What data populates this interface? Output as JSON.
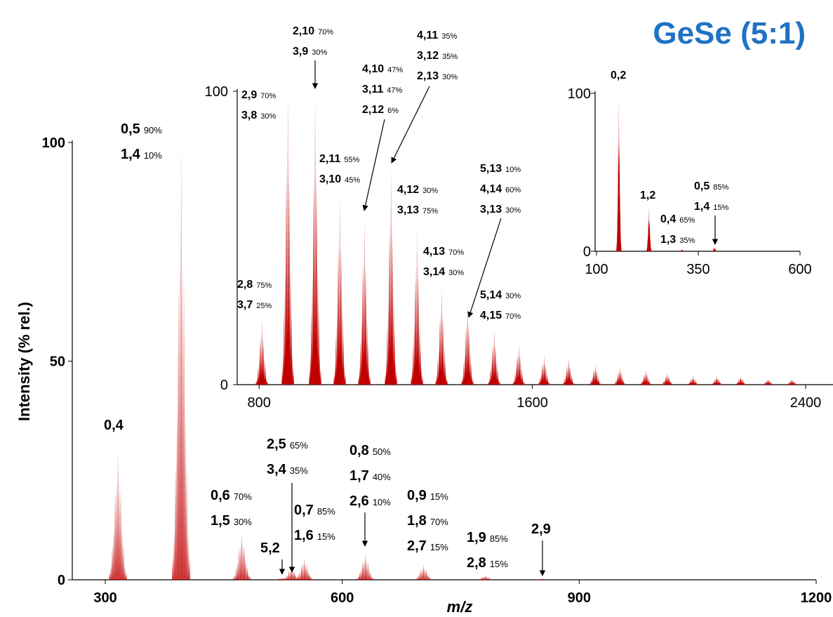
{
  "chart_data": [
    {
      "type": "spectrum",
      "title": "GeSe (5:1)",
      "x_label": "m/z",
      "y_label": "Intensity (% rel.)",
      "color": "#c00000",
      "xlim": [
        260,
        1200
      ],
      "xticks": [
        300,
        600,
        900,
        1200
      ],
      "ylim": [
        0,
        100
      ],
      "yticks": [
        0,
        50,
        100
      ],
      "peaks": [
        {
          "x": 316,
          "value": 30,
          "labels": [
            [
              "0,4"
            ]
          ],
          "arrow": false
        },
        {
          "x": 396,
          "value": 100,
          "labels": [
            [
              "0,5",
              "90%"
            ],
            [
              "1,4",
              "10%"
            ]
          ],
          "arrow": false
        },
        {
          "x": 473,
          "value": 11,
          "labels": [
            [
              "0,6",
              "70%"
            ],
            [
              "1,5",
              "30%"
            ]
          ],
          "arrow": false
        },
        {
          "x": 524,
          "value": 0.5,
          "labels": [
            [
              "5,2"
            ]
          ],
          "arrow": true
        },
        {
          "x": 536,
          "value": 3,
          "labels": [
            [
              "2,5",
              "65%"
            ],
            [
              "3,4",
              "35%"
            ]
          ],
          "arrow": true
        },
        {
          "x": 552,
          "value": 5,
          "labels": [
            [
              "0,7",
              "85%"
            ],
            [
              "1,6",
              "15%"
            ]
          ],
          "arrow": false
        },
        {
          "x": 629,
          "value": 6,
          "labels": [
            [
              "0,8",
              "50%"
            ],
            [
              "1,7",
              "40%"
            ],
            [
              "2,6",
              "10%"
            ]
          ],
          "arrow": true
        },
        {
          "x": 703,
          "value": 3.5,
          "labels": [
            [
              "0,9",
              "15%"
            ],
            [
              "1,8",
              "70%"
            ],
            [
              "2,7",
              "15%"
            ]
          ],
          "arrow": false
        },
        {
          "x": 781,
          "value": 1,
          "labels": [
            [
              "1,9",
              "85%"
            ],
            [
              "2,8",
              "15%"
            ]
          ],
          "arrow": false
        },
        {
          "x": 853,
          "value": 0.3,
          "labels": [
            [
              "2,9"
            ]
          ],
          "arrow": true
        }
      ]
    },
    {
      "type": "spectrum",
      "color": "#c00000",
      "xlim": [
        740,
        2480
      ],
      "xticks": [
        800,
        1600,
        2400
      ],
      "ylim": [
        0,
        100
      ],
      "yticks": [
        0,
        100
      ],
      "peaks": [
        {
          "x": 808,
          "value": 22,
          "labels": [
            [
              "2,8",
              "75%"
            ],
            [
              "3,7",
              "25%"
            ]
          ],
          "arrow": false
        },
        {
          "x": 884,
          "value": 100,
          "labels": [
            [
              "2,9",
              "70%"
            ],
            [
              "3,8",
              "30%"
            ]
          ],
          "arrow": false
        },
        {
          "x": 964,
          "value": 99,
          "labels": [
            [
              "2,10",
              "70%"
            ],
            [
              "3,9",
              "30%"
            ]
          ],
          "arrow": true
        },
        {
          "x": 1036,
          "value": 65,
          "labels": [
            [
              "2,11",
              "55%"
            ],
            [
              "3,10",
              "45%"
            ]
          ],
          "arrow": false
        },
        {
          "x": 1108,
          "value": 57,
          "labels": [
            [
              "4,10",
              "47%"
            ],
            [
              "3,11",
              "47%"
            ],
            [
              "2,12",
              "6%"
            ]
          ],
          "arrow": true
        },
        {
          "x": 1186,
          "value": 74,
          "labels": [
            [
              "4,11",
              "35%"
            ],
            [
              "3,12",
              "35%"
            ],
            [
              "2,13",
              "30%"
            ]
          ],
          "arrow": true
        },
        {
          "x": 1262,
          "value": 53,
          "labels": [
            [
              "4,12",
              "30%"
            ],
            [
              "3,13",
              "75%"
            ]
          ],
          "arrow": false
        },
        {
          "x": 1334,
          "value": 33,
          "labels": [
            [
              "4,13",
              "70%"
            ],
            [
              "3,14",
              "30%"
            ]
          ],
          "arrow": false
        },
        {
          "x": 1410,
          "value": 28,
          "labels": [
            [
              "5,13",
              "10%"
            ],
            [
              "4,14",
              "60%"
            ],
            [
              "3,13",
              "30%"
            ]
          ],
          "arrow": true
        },
        {
          "x": 1488,
          "value": 19,
          "labels": [
            [
              "5,14",
              "30%"
            ],
            [
              "4,15",
              "70%"
            ]
          ],
          "arrow": false
        },
        {
          "x": 1560,
          "value": 14,
          "labels": [],
          "arrow": false
        },
        {
          "x": 1634,
          "value": 10,
          "labels": [],
          "arrow": false
        },
        {
          "x": 1706,
          "value": 9,
          "labels": [],
          "arrow": false
        },
        {
          "x": 1784,
          "value": 7,
          "labels": [],
          "arrow": false
        },
        {
          "x": 1856,
          "value": 6,
          "labels": [],
          "arrow": false
        },
        {
          "x": 1932,
          "value": 5,
          "labels": [],
          "arrow": false
        },
        {
          "x": 1995,
          "value": 4,
          "labels": [],
          "arrow": false
        },
        {
          "x": 2070,
          "value": 3,
          "labels": [],
          "arrow": false
        },
        {
          "x": 2140,
          "value": 3,
          "labels": [],
          "arrow": false
        },
        {
          "x": 2210,
          "value": 3,
          "labels": [],
          "arrow": false
        },
        {
          "x": 2290,
          "value": 2,
          "labels": [],
          "arrow": false
        },
        {
          "x": 2360,
          "value": 2,
          "labels": [],
          "arrow": false
        }
      ]
    },
    {
      "type": "spectrum",
      "color": "#c00000",
      "xlim": [
        100,
        600
      ],
      "xticks": [
        100,
        350,
        600
      ],
      "ylim": [
        0,
        100
      ],
      "yticks": [
        0,
        100
      ],
      "peaks": [
        {
          "x": 114,
          "value": 0.5,
          "labels": [],
          "arrow": false
        },
        {
          "x": 155,
          "value": 97,
          "labels": [
            [
              "0,2"
            ]
          ],
          "arrow": false
        },
        {
          "x": 229,
          "value": 28,
          "labels": [
            [
              "1,2"
            ]
          ],
          "arrow": false
        },
        {
          "x": 310,
          "value": 1.3,
          "labels": [
            [
              "0,4",
              "65%"
            ],
            [
              "1,3",
              "35%"
            ]
          ],
          "arrow": false
        },
        {
          "x": 390,
          "value": 2.7,
          "labels": [
            [
              "0,5",
              "85%"
            ],
            [
              "1,4",
              "15%"
            ]
          ],
          "arrow": true
        }
      ]
    }
  ]
}
